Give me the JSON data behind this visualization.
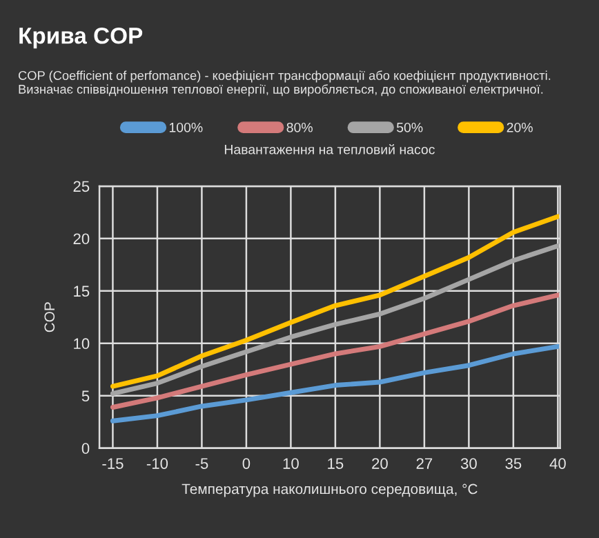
{
  "chart_data": {
    "type": "line",
    "title": "Крива COP",
    "subtitle": "COP (Coefficient of perfomance) - коефіцієнт трансформації або коефіцієнт продуктивності. Визначає співвідношення теплової енергії, що виробляється, до споживаної електричної.",
    "xlabel": "Температура наколишнього середовища, °C",
    "ylabel": "COP",
    "legend_title": "Навантаження на тепловий насос",
    "categories": [
      "-15",
      "-10",
      "-5",
      "0",
      "10",
      "15",
      "20",
      "27",
      "30",
      "35",
      "40"
    ],
    "series": [
      {
        "name": "100%",
        "color": "#5b9bd5",
        "values": [
          2.6,
          3.1,
          4.0,
          4.6,
          5.3,
          6.0,
          6.3,
          7.2,
          7.9,
          9.0,
          9.7
        ]
      },
      {
        "name": "80%",
        "color": "#d47a7a",
        "values": [
          3.9,
          4.8,
          5.9,
          7.0,
          8.0,
          9.0,
          9.7,
          10.9,
          12.1,
          13.6,
          14.6
        ]
      },
      {
        "name": "50%",
        "color": "#a5a5a5",
        "values": [
          5.2,
          6.2,
          7.8,
          9.2,
          10.6,
          11.8,
          12.8,
          14.3,
          16.1,
          17.9,
          19.3
        ]
      },
      {
        "name": "20%",
        "color": "#ffc000",
        "values": [
          5.9,
          6.9,
          8.8,
          10.3,
          12.0,
          13.6,
          14.6,
          16.4,
          18.2,
          20.6,
          22.1
        ]
      }
    ],
    "ylim": [
      0,
      25
    ],
    "yticks": [
      0,
      5,
      10,
      15,
      20,
      25
    ],
    "grid": true,
    "legend": "top",
    "line_style": "solid",
    "marker": "none"
  }
}
